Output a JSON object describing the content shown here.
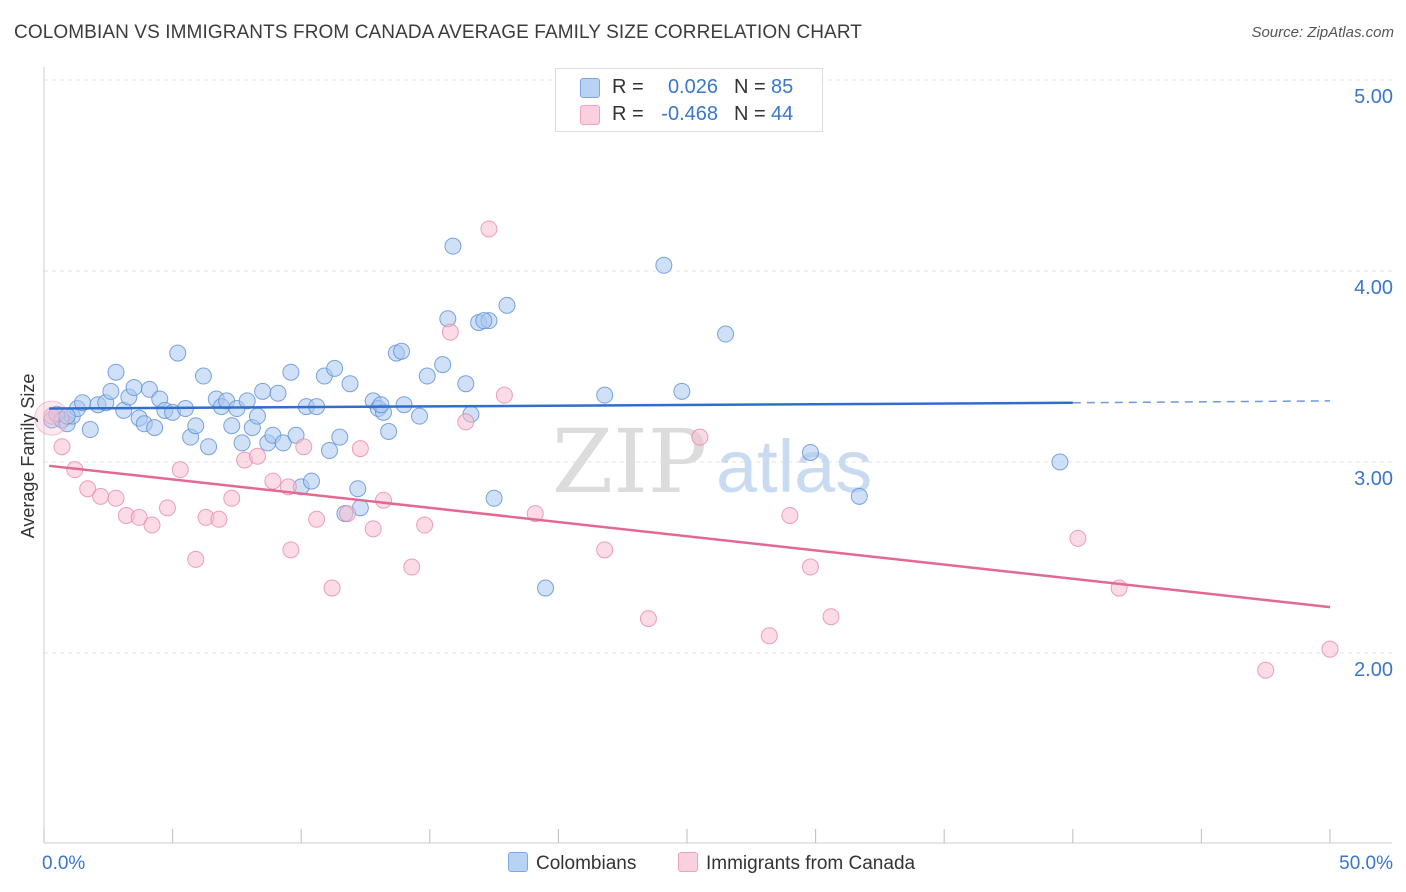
{
  "title": "COLOMBIAN VS IMMIGRANTS FROM CANADA AVERAGE FAMILY SIZE CORRELATION CHART",
  "source": "Source: ZipAtlas.com",
  "watermark": {
    "zip": "ZIP",
    "atlas": "atlas"
  },
  "legend": {
    "r_label": "R =",
    "n_label": "N =",
    "items": [
      {
        "r_value": "0.026",
        "n_value": "85",
        "color": "#a9c8f0"
      },
      {
        "r_value": "-0.468",
        "n_value": "44",
        "color": "#f7bdd0"
      }
    ]
  },
  "bottom_legend": {
    "colombians": "Colombians",
    "canada": "Immigrants from Canada"
  },
  "chart_data": {
    "type": "scatter",
    "title": "COLOMBIAN VS IMMIGRANTS FROM CANADA AVERAGE FAMILY SIZE CORRELATION CHART",
    "xlabel": "",
    "ylabel": "Average Family Size",
    "xlim": [
      0,
      50
    ],
    "ylim": [
      1.05,
      5.1
    ],
    "x_tick_labels": [
      "0.0%",
      "50.0%"
    ],
    "y_ticks": [
      2.0,
      3.0,
      4.0,
      5.0
    ],
    "y_tick_labels": [
      "2.00",
      "3.00",
      "4.00",
      "5.00"
    ],
    "grid": true,
    "series": [
      {
        "name": "Colombians",
        "color": "#a9c8f0",
        "stroke": "#5b8fd6",
        "line_color": "#2f6fcb",
        "trend": {
          "x0": 0.2,
          "y0": 3.28,
          "x1": 40,
          "y1": 3.31,
          "dash_to_x": 50,
          "dash_to_y": 3.32
        },
        "points": [
          [
            0.3,
            3.22
          ],
          [
            0.5,
            3.25
          ],
          [
            0.7,
            3.22
          ],
          [
            0.9,
            3.2
          ],
          [
            1.1,
            3.24
          ],
          [
            1.3,
            3.28
          ],
          [
            1.5,
            3.31
          ],
          [
            1.8,
            3.17
          ],
          [
            2.1,
            3.3
          ],
          [
            2.4,
            3.31
          ],
          [
            2.6,
            3.37
          ],
          [
            2.8,
            3.47
          ],
          [
            3.1,
            3.27
          ],
          [
            3.3,
            3.34
          ],
          [
            3.5,
            3.39
          ],
          [
            3.7,
            3.23
          ],
          [
            3.9,
            3.2
          ],
          [
            4.1,
            3.38
          ],
          [
            4.3,
            3.18
          ],
          [
            4.5,
            3.33
          ],
          [
            4.7,
            3.27
          ],
          [
            5.0,
            3.26
          ],
          [
            5.2,
            3.57
          ],
          [
            5.5,
            3.28
          ],
          [
            5.7,
            3.13
          ],
          [
            5.9,
            3.19
          ],
          [
            6.2,
            3.45
          ],
          [
            6.4,
            3.08
          ],
          [
            6.7,
            3.33
          ],
          [
            6.9,
            3.29
          ],
          [
            7.1,
            3.32
          ],
          [
            7.3,
            3.19
          ],
          [
            7.5,
            3.28
          ],
          [
            7.7,
            3.1
          ],
          [
            7.9,
            3.32
          ],
          [
            8.1,
            3.18
          ],
          [
            8.3,
            3.24
          ],
          [
            8.5,
            3.37
          ],
          [
            8.7,
            3.1
          ],
          [
            8.9,
            3.14
          ],
          [
            9.1,
            3.36
          ],
          [
            9.3,
            3.1
          ],
          [
            9.6,
            3.47
          ],
          [
            9.8,
            3.14
          ],
          [
            10.0,
            2.87
          ],
          [
            10.2,
            3.29
          ],
          [
            10.4,
            2.9
          ],
          [
            10.6,
            3.29
          ],
          [
            10.9,
            3.45
          ],
          [
            11.1,
            3.06
          ],
          [
            11.3,
            3.49
          ],
          [
            11.5,
            3.13
          ],
          [
            11.7,
            2.73
          ],
          [
            11.9,
            3.41
          ],
          [
            12.2,
            2.86
          ],
          [
            12.3,
            2.76
          ],
          [
            12.8,
            3.32
          ],
          [
            13.0,
            3.28
          ],
          [
            13.2,
            3.26
          ],
          [
            13.4,
            3.16
          ],
          [
            13.1,
            3.3
          ],
          [
            13.7,
            3.57
          ],
          [
            13.9,
            3.58
          ],
          [
            14.0,
            3.3
          ],
          [
            14.6,
            3.24
          ],
          [
            14.9,
            3.45
          ],
          [
            15.5,
            3.51
          ],
          [
            15.7,
            3.75
          ],
          [
            15.9,
            4.13
          ],
          [
            16.4,
            3.41
          ],
          [
            16.6,
            3.25
          ],
          [
            16.9,
            3.73
          ],
          [
            17.3,
            3.74
          ],
          [
            18.0,
            3.82
          ],
          [
            17.1,
            3.74
          ],
          [
            17.5,
            2.81
          ],
          [
            19.5,
            2.34
          ],
          [
            21.8,
            3.35
          ],
          [
            24.1,
            4.03
          ],
          [
            24.8,
            3.37
          ],
          [
            26.5,
            3.67
          ],
          [
            29.8,
            3.05
          ],
          [
            31.7,
            2.82
          ],
          [
            39.5,
            3.0
          ],
          [
            0.9,
            3.24
          ]
        ]
      },
      {
        "name": "Immigrants from Canada",
        "color": "#f7bdd0",
        "stroke": "#e88aa9",
        "line_color": "#e2698f",
        "trend": {
          "x0": 0.2,
          "y0": 2.98,
          "x1": 50,
          "y1": 2.24
        },
        "points": [
          [
            0.3,
            3.24
          ],
          [
            0.7,
            3.08
          ],
          [
            1.2,
            2.96
          ],
          [
            1.7,
            2.86
          ],
          [
            2.2,
            2.82
          ],
          [
            2.8,
            2.81
          ],
          [
            3.2,
            2.72
          ],
          [
            3.7,
            2.71
          ],
          [
            4.2,
            2.67
          ],
          [
            4.8,
            2.76
          ],
          [
            5.3,
            2.96
          ],
          [
            5.9,
            2.49
          ],
          [
            6.3,
            2.71
          ],
          [
            6.8,
            2.7
          ],
          [
            7.3,
            2.81
          ],
          [
            7.8,
            3.01
          ],
          [
            8.3,
            3.03
          ],
          [
            8.9,
            2.9
          ],
          [
            9.5,
            2.87
          ],
          [
            9.6,
            2.54
          ],
          [
            10.1,
            3.08
          ],
          [
            10.6,
            2.7
          ],
          [
            11.2,
            2.34
          ],
          [
            11.8,
            2.73
          ],
          [
            12.3,
            3.07
          ],
          [
            12.8,
            2.65
          ],
          [
            13.2,
            2.8
          ],
          [
            14.3,
            2.45
          ],
          [
            14.8,
            2.67
          ],
          [
            15.8,
            3.68
          ],
          [
            16.4,
            3.21
          ],
          [
            17.3,
            4.22
          ],
          [
            17.9,
            3.35
          ],
          [
            19.1,
            2.73
          ],
          [
            21.8,
            2.54
          ],
          [
            23.5,
            2.18
          ],
          [
            25.5,
            3.13
          ],
          [
            28.2,
            2.09
          ],
          [
            29.0,
            2.72
          ],
          [
            29.8,
            2.45
          ],
          [
            30.6,
            2.19
          ],
          [
            40.2,
            2.6
          ],
          [
            41.8,
            2.34
          ],
          [
            47.5,
            1.91
          ]
        ]
      },
      {
        "name": "Immigrants from Canada (edge)",
        "color": "#f7bdd0",
        "stroke": "#e88aa9",
        "points": [
          [
            50,
            2.02
          ]
        ]
      }
    ]
  }
}
